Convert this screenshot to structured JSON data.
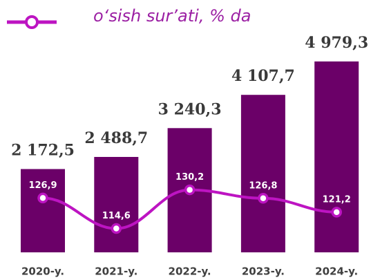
{
  "chart_data": {
    "type": "bar_line",
    "categories": [
      "2020-y.",
      "2021-y.",
      "2022-y.",
      "2023-y.",
      "2024-y."
    ],
    "series": [
      {
        "type": "bar",
        "color": "#6b0068",
        "values": [
          2172.5,
          2488.7,
          3240.3,
          4107.7,
          4979.3
        ],
        "value_labels": [
          "2 172,5",
          "2 488,7",
          "3 240,3",
          "4 107,7",
          "4 979,3"
        ]
      },
      {
        "type": "line",
        "name": "o‘sish sur’ati, % da",
        "color": "#bd14c2",
        "axis": "y2",
        "values": [
          126.9,
          114.6,
          130.2,
          126.8,
          121.2
        ],
        "value_labels": [
          "126,9",
          "114,6",
          "130,2",
          "126,8",
          "121,2"
        ]
      }
    ],
    "ylim": [
      0,
      5500
    ],
    "y2lim": [
      105,
      190
    ],
    "grid": false
  }
}
